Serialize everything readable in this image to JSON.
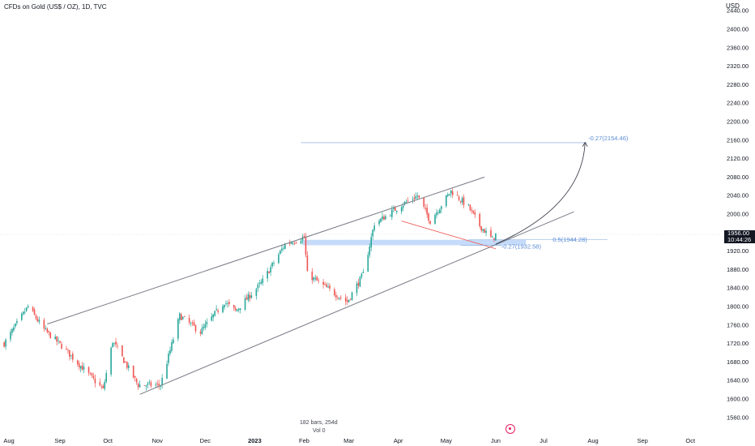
{
  "header": {
    "title": "CFDs on Gold (US$ / OZ), 1D, TVC",
    "currency": "USD"
  },
  "footer": {
    "bars_info": "182 bars, 254d",
    "vol_info": "Vol 0"
  },
  "price_tag": {
    "price": "1956.00",
    "countdown": "10:44:26"
  },
  "colors": {
    "up": "#26a69a",
    "down": "#ef5350",
    "trendline": "#787b86",
    "fib": "#5b8dd6",
    "zone": "#b7d2f7",
    "support": "#ef5350"
  },
  "annotations": {
    "fib_top": "-0.27(2154.46)",
    "fib_mid": "0.5(1944.28)",
    "fib_low": "-0.27(1932.58)"
  },
  "chart_data": {
    "type": "candlestick",
    "title": "CFDs on Gold (US$ / OZ), 1D, TVC",
    "y_axis": {
      "ylim": [
        1540,
        2480
      ],
      "ticks": [
        "1560.00",
        "1600.00",
        "1640.00",
        "1680.00",
        "1720.00",
        "1760.00",
        "1800.00",
        "1840.00",
        "1880.00",
        "1920.00",
        "2000.00",
        "2040.00",
        "2080.00",
        "2120.00",
        "2160.00",
        "2200.00",
        "2240.00",
        "2280.00",
        "2320.00",
        "2360.00",
        "2400.00",
        "2440.00"
      ]
    },
    "x_axis": {
      "ticks": [
        "Aug",
        "Sep",
        "Oct",
        "Nov",
        "Dec",
        "2023",
        "Feb",
        "Mar",
        "Apr",
        "May",
        "Jun",
        "Jul",
        "Aug",
        "Sep",
        "Oct"
      ]
    },
    "last_price": 1956.0,
    "ohlc_path": [
      [
        "2022-07-28",
        1720
      ],
      [
        "2022-08-12",
        1800
      ],
      [
        "2022-08-22",
        1750
      ],
      [
        "2022-09-02",
        1715
      ],
      [
        "2022-09-28",
        1620
      ],
      [
        "2022-10-04",
        1725
      ],
      [
        "2022-10-20",
        1630
      ],
      [
        "2022-11-03",
        1630
      ],
      [
        "2022-11-15",
        1780
      ],
      [
        "2022-11-28",
        1745
      ],
      [
        "2022-12-13",
        1810
      ],
      [
        "2022-12-20",
        1790
      ],
      [
        "2023-01-05",
        1850
      ],
      [
        "2023-01-20",
        1935
      ],
      [
        "2023-02-01",
        1950
      ],
      [
        "2023-02-03",
        1870
      ],
      [
        "2023-02-15",
        1840
      ],
      [
        "2023-02-28",
        1810
      ],
      [
        "2023-03-10",
        1870
      ],
      [
        "2023-03-17",
        1980
      ],
      [
        "2023-03-22",
        1990
      ],
      [
        "2023-04-03",
        2020
      ],
      [
        "2023-04-13",
        2040
      ],
      [
        "2023-04-21",
        1985
      ],
      [
        "2023-05-04",
        2050
      ],
      [
        "2023-05-15",
        2015
      ],
      [
        "2023-05-22",
        1975
      ],
      [
        "2023-05-30",
        1945
      ],
      [
        "2023-06-01",
        1956
      ]
    ],
    "channel": {
      "upper": [
        [
          "2022-08-24",
          1762
        ],
        [
          "2023-05-25",
          2080
        ]
      ],
      "lower": [
        [
          "2022-10-21",
          1610
        ],
        [
          "2023-07-20",
          2005
        ]
      ]
    },
    "support_line": [
      [
        "2023-04-03",
        1985
      ],
      [
        "2023-06-01",
        1925
      ]
    ],
    "zone": {
      "from": "2023-01-31",
      "to": "2023-06-20",
      "low": 1932.58,
      "high": 1944.28
    },
    "fib_levels": [
      {
        "label": "-0.27(2154.46)",
        "price": 2154.46,
        "from": "2023-01-30",
        "to": "2023-07-28"
      },
      {
        "label": "0.5(1944.28)",
        "price": 1944.28,
        "from": "2023-05-15",
        "to": "2023-08-10"
      },
      {
        "label": "-0.27(1932.58)",
        "price": 1932.58,
        "from": "2023-05-10",
        "to": "2023-06-05"
      }
    ],
    "projection_arrow": [
      [
        "2023-06-01",
        1935
      ],
      [
        "2023-07-15",
        2035
      ],
      [
        "2023-07-27",
        2155
      ]
    ]
  }
}
